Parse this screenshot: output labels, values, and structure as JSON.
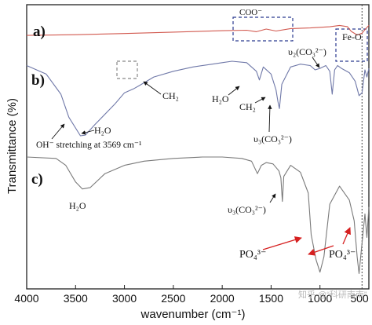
{
  "chart_data": {
    "type": "line",
    "xlabel": "wavenumber (cm⁻¹)",
    "ylabel": "Transmittance (%)",
    "xlim": [
      4000,
      500
    ],
    "x_direction": "reversed",
    "x_ticks": [
      "4000",
      "3500",
      "3000",
      "2500",
      "2000",
      "1500",
      "1000",
      "500"
    ],
    "y_ticks_shown": false,
    "grid": false,
    "reference_line": {
      "x": 570,
      "style": "dotted"
    },
    "watermark": "知乎 @“科研南南”",
    "series": [
      {
        "panel": "a)",
        "color": "#d25a50",
        "x": [
          4000,
          3500,
          3000,
          2500,
          2000,
          1750,
          1650,
          1550,
          1450,
          1300,
          1100,
          900,
          800,
          720,
          680,
          620,
          570,
          540,
          500
        ],
        "y": [
          0.75,
          0.99,
          1.4,
          1.88,
          2.35,
          2.5,
          2.0,
          2.9,
          2.25,
          3.05,
          3.25,
          3.65,
          4.1,
          3.7,
          2.1,
          0.9,
          1.5,
          2.7,
          4.1
        ]
      },
      {
        "panel": "b)",
        "color": "#6f78a8",
        "x": [
          4000,
          3800,
          3650,
          3569,
          3450,
          3400,
          3300,
          3100,
          3000,
          2900,
          2850,
          2700,
          2500,
          2300,
          2100,
          2000,
          1900,
          1750,
          1650,
          1620,
          1580,
          1500,
          1450,
          1430,
          1415,
          1390,
          1300,
          1200,
          1100,
          1050,
          1000,
          940,
          900,
          875,
          850,
          820,
          780,
          700,
          640,
          600,
          570,
          540,
          520,
          500
        ],
        "y": [
          49,
          43,
          29,
          13,
          0,
          0.5,
          8,
          22,
          30,
          33,
          35,
          41,
          45,
          48,
          50,
          51,
          52,
          51,
          45,
          39,
          48,
          43,
          32,
          24,
          19,
          36,
          48,
          50,
          49,
          46,
          47,
          49,
          45,
          29,
          46,
          49,
          47,
          44,
          38,
          28,
          30,
          46,
          41,
          47
        ]
      },
      {
        "panel": "c)",
        "color": "#7a7a7a",
        "x": [
          4000,
          3700,
          3600,
          3500,
          3430,
          3350,
          3200,
          3000,
          2800,
          2500,
          2200,
          2000,
          1800,
          1700,
          1640,
          1600,
          1550,
          1480,
          1420,
          1400,
          1385,
          1370,
          1300,
          1200,
          1120,
          1090,
          1040,
          1000,
          960,
          900,
          800,
          700,
          650,
          620,
          600,
          570,
          540,
          520,
          500
        ],
        "y": [
          86,
          85,
          80,
          68,
          63,
          64,
          74,
          80,
          83,
          85,
          86,
          86,
          85,
          83,
          74,
          80,
          82,
          81,
          76,
          71,
          54,
          72,
          80,
          75,
          60,
          30,
          12,
          3,
          14,
          52,
          65,
          55,
          40,
          14,
          2,
          24,
          45,
          28,
          50
        ]
      }
    ],
    "annotations": [
      {
        "text": "COO⁻",
        "x_range": [
          1800,
          1500
        ],
        "dashed_box": true
      },
      {
        "text": "Fe-O",
        "x_range": [
          790,
          500
        ],
        "dashed_box": true
      },
      {
        "text": "CH₂",
        "x": 2800,
        "arrow": true,
        "dashed_box": true
      },
      {
        "text": "H₂O",
        "x": 1620,
        "arrow": true
      },
      {
        "text": "CH₂",
        "x": 1450,
        "arrow": true
      },
      {
        "text": "υ₂(CO₃²⁻)",
        "x": 875,
        "arrow": true
      },
      {
        "text": "υ₃(CO₃²⁻)",
        "x": 1415,
        "arrow": true
      },
      {
        "text": "H₂O",
        "x": 3420,
        "arrow": true
      },
      {
        "text": "OH⁻ stretching at 3569 cm⁻¹",
        "x": 3569,
        "arrow": true
      },
      {
        "text": "H₂O",
        "x": 3430
      },
      {
        "text": "υ₃(CO₃²⁻)",
        "x": 1385,
        "arrow": true
      },
      {
        "text": "PO₄³⁻",
        "x": 1040,
        "arrow": true,
        "color": "#d62020"
      },
      {
        "text": "PO₄³⁻",
        "x": 600,
        "arrow": true,
        "color": "#d62020"
      }
    ]
  }
}
